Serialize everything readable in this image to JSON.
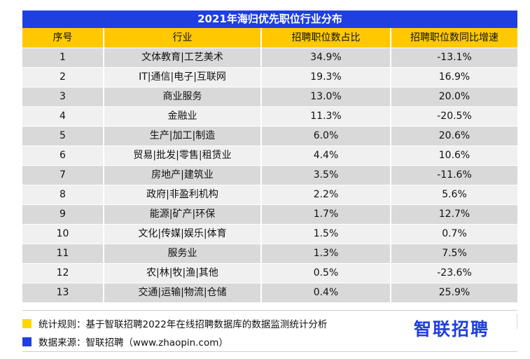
{
  "chart_data": {
    "type": "table",
    "title": "2021年海归优先职位行业分布",
    "columns": [
      "序号",
      "行业",
      "招聘职位数占比",
      "招聘职位数同比增速"
    ],
    "rows": [
      [
        "1",
        "文体教育|工艺美术",
        "34.9%",
        "-13.1%"
      ],
      [
        "2",
        "IT|通信|电子|互联网",
        "19.3%",
        "16.9%"
      ],
      [
        "3",
        "商业服务",
        "13.0%",
        "20.0%"
      ],
      [
        "4",
        "金融业",
        "11.3%",
        "-20.5%"
      ],
      [
        "5",
        "生产|加工|制造",
        "6.0%",
        "20.6%"
      ],
      [
        "6",
        "贸易|批发|零售|租赁业",
        "4.4%",
        "10.6%"
      ],
      [
        "7",
        "房地产|建筑业",
        "3.5%",
        "-11.6%"
      ],
      [
        "8",
        "政府|非盈利机构",
        "2.2%",
        "5.6%"
      ],
      [
        "9",
        "能源|矿产|环保",
        "1.7%",
        "12.7%"
      ],
      [
        "10",
        "文化|传媒|娱乐|体育",
        "1.5%",
        "0.7%"
      ],
      [
        "11",
        "服务业",
        "1.3%",
        "7.5%"
      ],
      [
        "12",
        "农|林|牧|渔|其他",
        "0.5%",
        "-23.6%"
      ],
      [
        "13",
        "交通|运输|物流|仓储",
        "0.4%",
        "25.9%"
      ]
    ]
  },
  "footer": {
    "rule_text": "统计规则：基于智联招聘2022年在线招聘数据库的数据监测统计分析",
    "source_text": "数据来源：智联招聘（www.zhaopin.com）",
    "logo_text": "智联招聘"
  },
  "colors": {
    "title_bg": "#1f3fe0",
    "header_bg": "#ffc800",
    "row_odd": "#d9d9d9",
    "row_even": "#f0f0f0",
    "legend_yellow": "#ffd700",
    "legend_blue": "#1f3fe0"
  }
}
